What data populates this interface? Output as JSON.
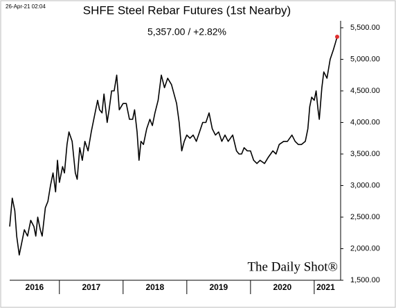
{
  "chart_data": {
    "type": "line",
    "title": "SHFE Steel Rebar Futures (1st Nearby)",
    "subtitle": "5,357.00  /  +2.82%",
    "timestamp": "26-Apr-21 02:04",
    "watermark": "The Daily Shot®",
    "x": [
      2016.22,
      2016.26,
      2016.3,
      2016.33,
      2016.37,
      2016.4,
      2016.45,
      2016.5,
      2016.55,
      2016.6,
      2016.63,
      2016.66,
      2016.7,
      2016.73,
      2016.78,
      2016.82,
      2016.86,
      2016.9,
      2016.94,
      2016.97,
      2017.0,
      2017.05,
      2017.08,
      2017.12,
      2017.15,
      2017.2,
      2017.25,
      2017.28,
      2017.32,
      2017.36,
      2017.4,
      2017.45,
      2017.5,
      2017.55,
      2017.6,
      2017.63,
      2017.67,
      2017.7,
      2017.75,
      2017.78,
      2017.82,
      2017.86,
      2017.9,
      2017.94,
      2017.97,
      2018.0,
      2018.05,
      2018.1,
      2018.15,
      2018.18,
      2018.22,
      2018.25,
      2018.28,
      2018.32,
      2018.37,
      2018.42,
      2018.46,
      2018.5,
      2018.55,
      2018.6,
      2018.65,
      2018.7,
      2018.76,
      2018.8,
      2018.84,
      2018.88,
      2018.92,
      2018.96,
      2019.0,
      2019.05,
      2019.1,
      2019.15,
      2019.2,
      2019.25,
      2019.3,
      2019.35,
      2019.4,
      2019.45,
      2019.5,
      2019.55,
      2019.6,
      2019.65,
      2019.72,
      2019.78,
      2019.82,
      2019.86,
      2019.9,
      2019.95,
      2020.0,
      2020.05,
      2020.1,
      2020.15,
      2020.22,
      2020.28,
      2020.35,
      2020.4,
      2020.45,
      2020.52,
      2020.58,
      2020.65,
      2020.7,
      2020.75,
      2020.8,
      2020.86,
      2020.9,
      2020.93,
      2020.96,
      2021.0,
      2021.03,
      2021.06,
      2021.08,
      2021.12,
      2021.15,
      2021.2,
      2021.25,
      2021.3,
      2021.33,
      2021.36
    ],
    "series": [
      {
        "name": "SHFE Steel Rebar Futures",
        "color": "#000000",
        "values": [
          2350,
          2800,
          2600,
          2200,
          1900,
          2050,
          2300,
          2200,
          2450,
          2350,
          2200,
          2500,
          2300,
          2200,
          2650,
          2750,
          3000,
          3200,
          2900,
          3400,
          3050,
          3300,
          3200,
          3650,
          3850,
          3700,
          3200,
          3100,
          3600,
          3400,
          3700,
          3550,
          3850,
          4100,
          4350,
          4200,
          4150,
          4450,
          4000,
          4200,
          4500,
          4500,
          4750,
          4200,
          4250,
          4300,
          4300,
          4050,
          4050,
          4200,
          3850,
          3400,
          3700,
          3650,
          3900,
          4050,
          3950,
          4150,
          4350,
          4750,
          4550,
          4700,
          4600,
          4450,
          4300,
          4000,
          3550,
          3700,
          3800,
          3750,
          3800,
          3700,
          3850,
          4000,
          4000,
          4150,
          3900,
          3800,
          3850,
          3700,
          3800,
          3700,
          3800,
          3550,
          3500,
          3500,
          3600,
          3550,
          3550,
          3400,
          3350,
          3400,
          3350,
          3450,
          3550,
          3500,
          3650,
          3700,
          3700,
          3800,
          3700,
          3650,
          3650,
          3700,
          3900,
          4250,
          4400,
          4350,
          4500,
          4200,
          4050,
          4550,
          4800,
          4700,
          5000,
          5150,
          5250,
          5357
        ]
      }
    ],
    "last_point_color": "#e03030",
    "xlim": [
      2016.22,
      2021.36
    ],
    "xticks": [
      2016,
      2017,
      2018,
      2019,
      2020,
      2021
    ],
    "ylim": [
      1500,
      5500
    ],
    "yticks": [
      {
        "value": 1500,
        "label": "1,500.00"
      },
      {
        "value": 2000,
        "label": "2,000.00"
      },
      {
        "value": 2500,
        "label": "2,500.00"
      },
      {
        "value": 3000,
        "label": "3,000.00"
      },
      {
        "value": 3500,
        "label": "3,500.00"
      },
      {
        "value": 4000,
        "label": "4,000.00"
      },
      {
        "value": 4500,
        "label": "4,500.00"
      },
      {
        "value": 5000,
        "label": "5,000.00"
      },
      {
        "value": 5500,
        "label": "5,500.00"
      }
    ]
  }
}
